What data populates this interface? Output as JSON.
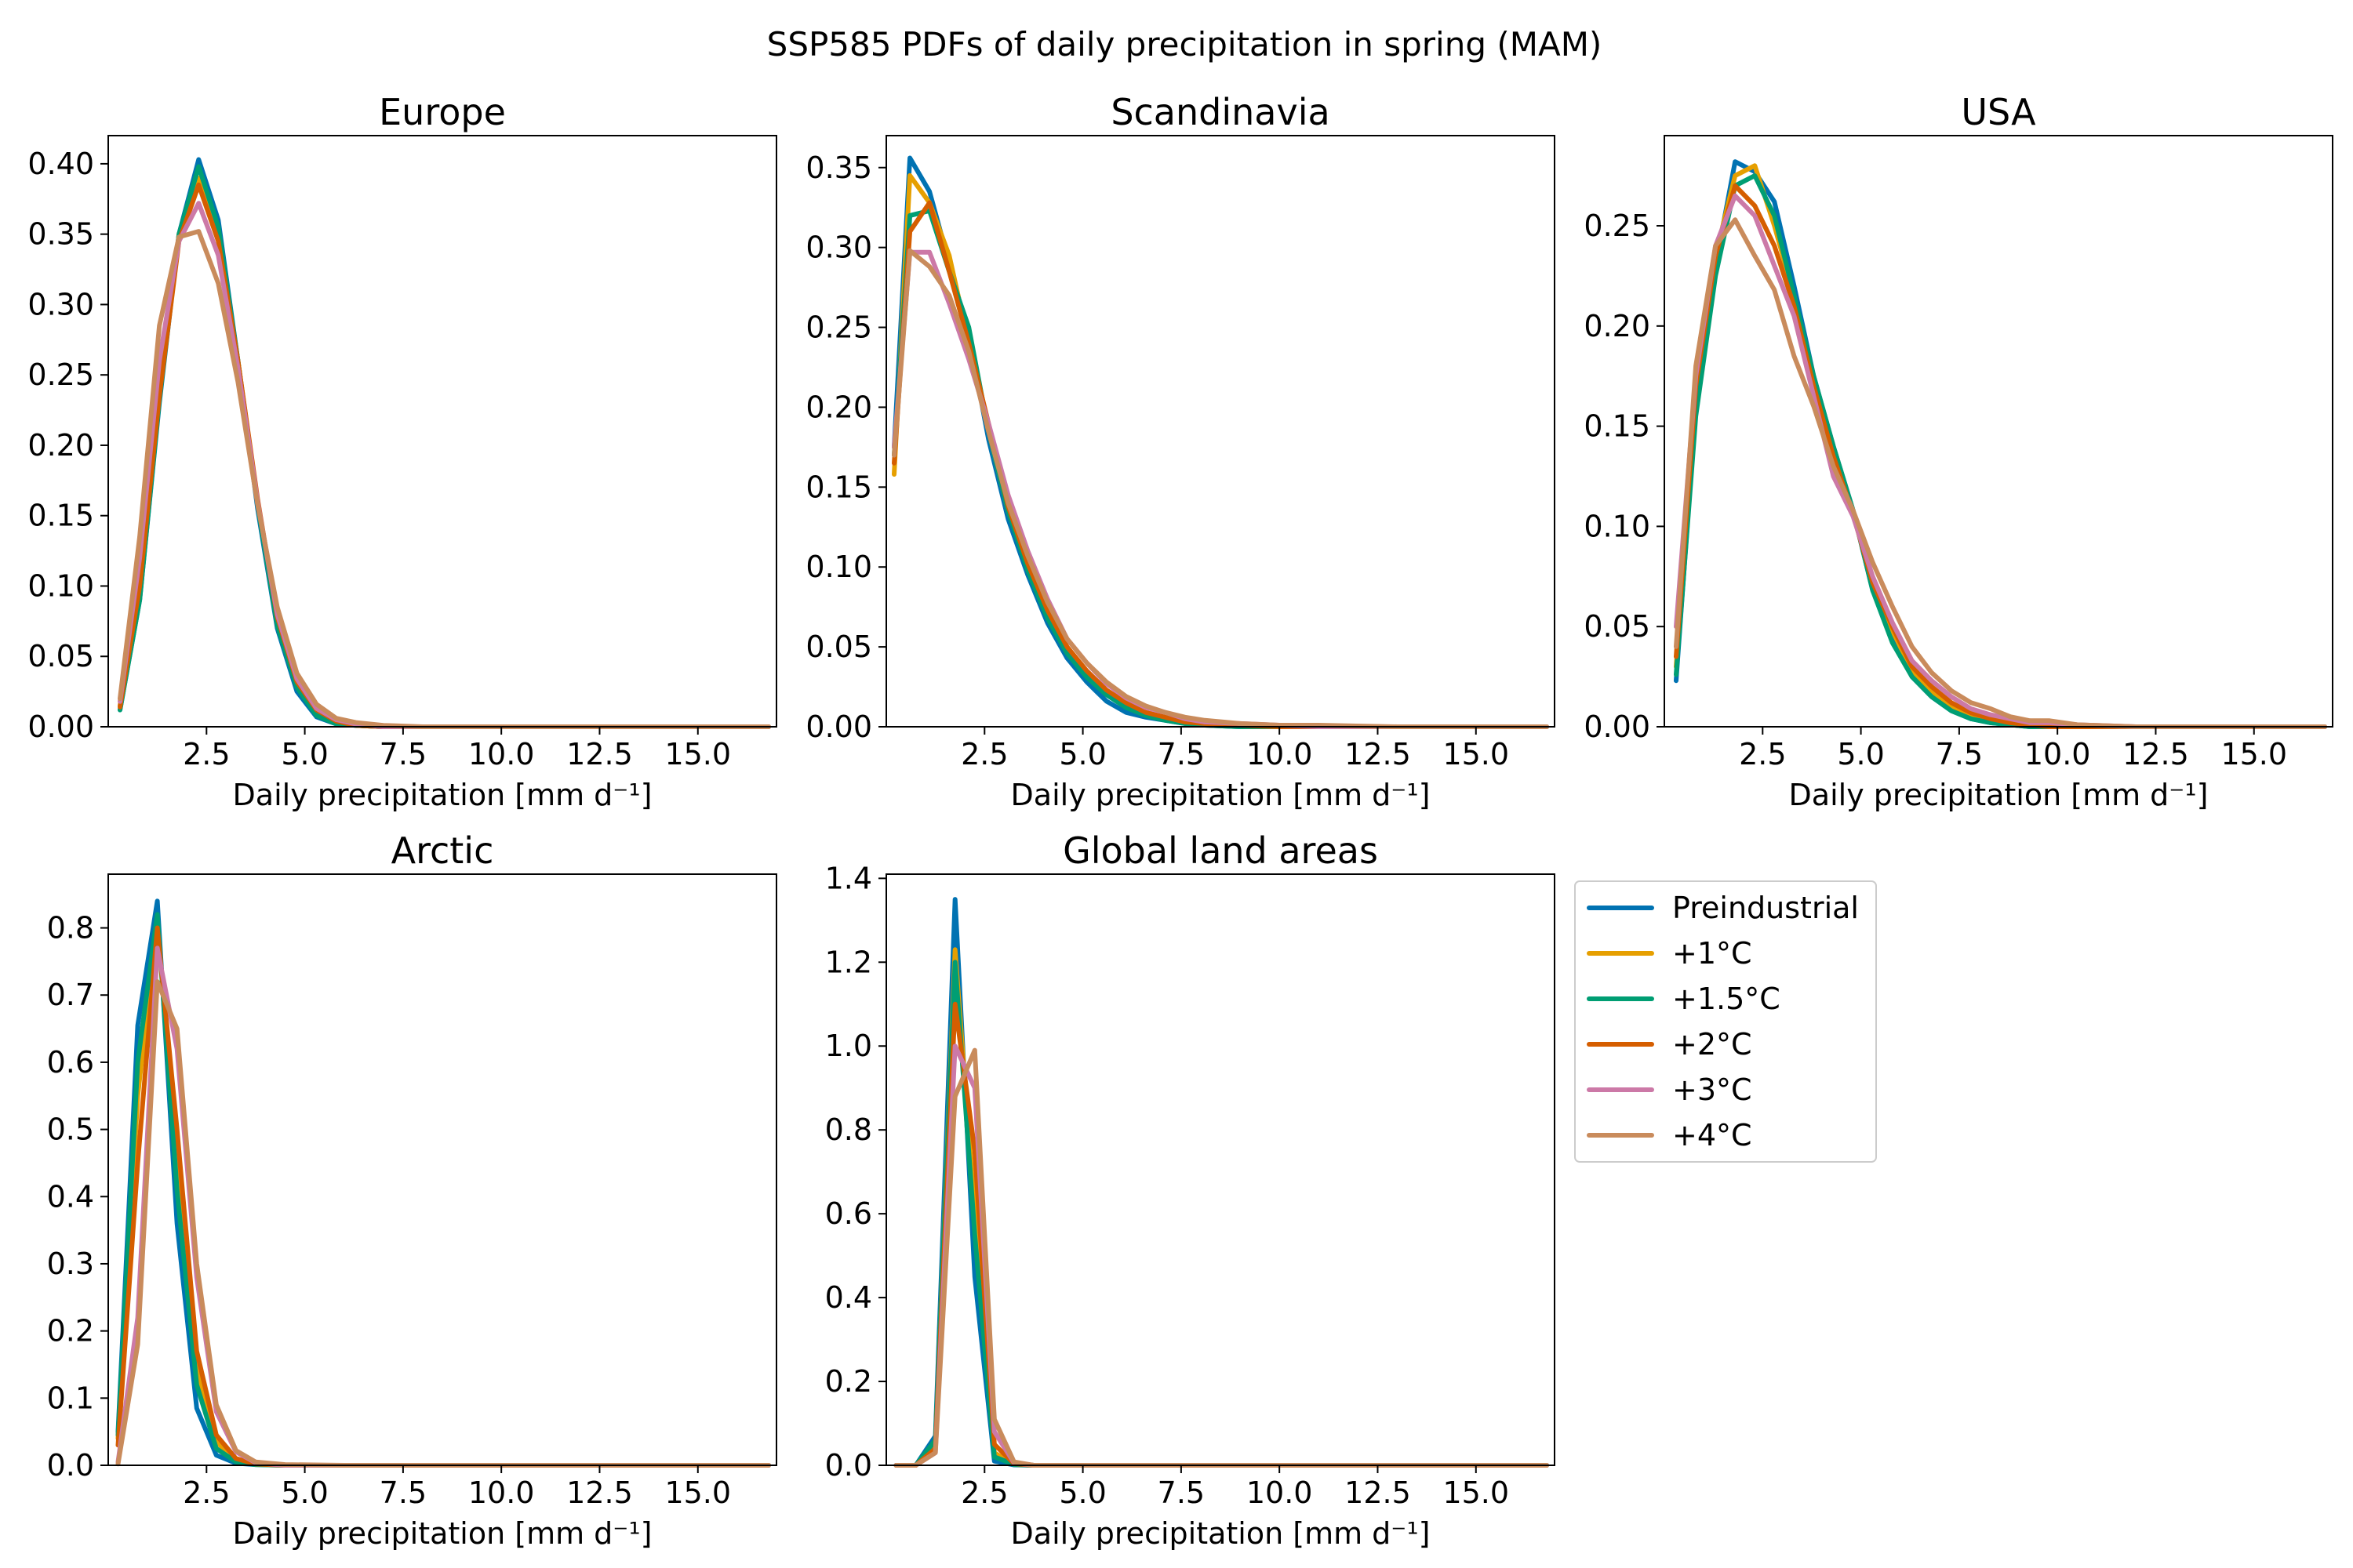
{
  "figure": {
    "title": "SSP585 PDFs of daily precipitation in spring (MAM)"
  },
  "legend": {
    "placement": "right of lower row",
    "entries": [
      {
        "label": "Preindustrial",
        "color": "#0072b2"
      },
      {
        "label": "+1°C",
        "color": "#e69f00"
      },
      {
        "label": "+1.5°C",
        "color": "#009e73"
      },
      {
        "label": "+2°C",
        "color": "#d55e00"
      },
      {
        "label": "+3°C",
        "color": "#cc79a7"
      },
      {
        "label": "+4°C",
        "color": "#c98b5c"
      }
    ]
  },
  "chart_data": [
    {
      "type": "line",
      "title": "Europe",
      "xlabel": "Daily precipitation [mm d⁻¹]",
      "ylabel": "",
      "xlim": [
        0,
        17
      ],
      "ylim": [
        0,
        0.42
      ],
      "xticks": [
        "2.5",
        "5.0",
        "7.5",
        "10.0",
        "12.5",
        "15.0"
      ],
      "yticks": [
        "0.00",
        "0.05",
        "0.10",
        "0.15",
        "0.20",
        "0.25",
        "0.30",
        "0.35",
        "0.40"
      ],
      "x": [
        0.3,
        0.8,
        1.3,
        1.8,
        2.3,
        2.8,
        3.3,
        3.8,
        4.3,
        4.8,
        5.3,
        5.8,
        6.3,
        7.0,
        8.0,
        10.0,
        13.0,
        16.8
      ],
      "series": [
        {
          "name": "Preindustrial",
          "values": [
            0.012,
            0.09,
            0.23,
            0.35,
            0.403,
            0.36,
            0.26,
            0.155,
            0.07,
            0.025,
            0.007,
            0.002,
            0.001,
            0,
            0,
            0,
            0,
            0
          ]
        },
        {
          "name": "+1°C",
          "values": [
            0.015,
            0.095,
            0.235,
            0.35,
            0.39,
            0.35,
            0.26,
            0.16,
            0.075,
            0.03,
            0.01,
            0.003,
            0.001,
            0,
            0,
            0,
            0,
            0
          ]
        },
        {
          "name": "+1.5°C",
          "values": [
            0.012,
            0.09,
            0.232,
            0.35,
            0.398,
            0.355,
            0.26,
            0.158,
            0.072,
            0.028,
            0.008,
            0.002,
            0.001,
            0,
            0,
            0,
            0,
            0
          ]
        },
        {
          "name": "+2°C",
          "values": [
            0.014,
            0.1,
            0.235,
            0.345,
            0.385,
            0.345,
            0.26,
            0.162,
            0.078,
            0.032,
            0.012,
            0.004,
            0.001,
            0,
            0,
            0,
            0,
            0
          ]
        },
        {
          "name": "+3°C",
          "values": [
            0.018,
            0.12,
            0.26,
            0.345,
            0.372,
            0.335,
            0.255,
            0.16,
            0.08,
            0.034,
            0.013,
            0.005,
            0.002,
            0,
            0,
            0,
            0,
            0
          ]
        },
        {
          "name": "+4°C",
          "values": [
            0.02,
            0.135,
            0.285,
            0.348,
            0.352,
            0.315,
            0.245,
            0.158,
            0.085,
            0.038,
            0.016,
            0.006,
            0.003,
            0.001,
            0,
            0,
            0,
            0
          ]
        }
      ]
    },
    {
      "type": "line",
      "title": "Scandinavia",
      "xlabel": "Daily precipitation [mm d⁻¹]",
      "ylabel": "",
      "xlim": [
        0,
        17
      ],
      "ylim": [
        0,
        0.37
      ],
      "xticks": [
        "2.5",
        "5.0",
        "7.5",
        "10.0",
        "12.5",
        "15.0"
      ],
      "yticks": [
        "0.00",
        "0.05",
        "0.10",
        "0.15",
        "0.20",
        "0.25",
        "0.30",
        "0.35"
      ],
      "x": [
        0.2,
        0.6,
        1.1,
        1.6,
        2.1,
        2.6,
        3.1,
        3.6,
        4.1,
        4.6,
        5.1,
        5.6,
        6.1,
        6.6,
        7.1,
        7.6,
        8.1,
        9.0,
        10.0,
        11.0,
        13.0,
        16.8
      ],
      "series": [
        {
          "name": "Preindustrial",
          "values": [
            0.175,
            0.356,
            0.335,
            0.29,
            0.245,
            0.18,
            0.13,
            0.095,
            0.065,
            0.043,
            0.028,
            0.016,
            0.009,
            0.006,
            0.004,
            0.002,
            0.001,
            0,
            0,
            0,
            0,
            0
          ]
        },
        {
          "name": "+1°C",
          "values": [
            0.158,
            0.345,
            0.328,
            0.295,
            0.24,
            0.185,
            0.135,
            0.1,
            0.072,
            0.05,
            0.034,
            0.022,
            0.014,
            0.008,
            0.005,
            0.003,
            0.002,
            0.001,
            0,
            0,
            0,
            0
          ]
        },
        {
          "name": "+1.5°C",
          "values": [
            0.17,
            0.32,
            0.323,
            0.285,
            0.25,
            0.185,
            0.135,
            0.098,
            0.068,
            0.046,
            0.031,
            0.02,
            0.012,
            0.007,
            0.004,
            0.002,
            0.001,
            0,
            0,
            0,
            0,
            0
          ]
        },
        {
          "name": "+2°C",
          "values": [
            0.165,
            0.31,
            0.328,
            0.285,
            0.24,
            0.19,
            0.138,
            0.102,
            0.073,
            0.05,
            0.035,
            0.023,
            0.015,
            0.009,
            0.006,
            0.003,
            0.002,
            0.001,
            0,
            0,
            0,
            0
          ]
        },
        {
          "name": "+3°C",
          "values": [
            0.175,
            0.297,
            0.297,
            0.265,
            0.23,
            0.19,
            0.145,
            0.11,
            0.08,
            0.055,
            0.04,
            0.027,
            0.018,
            0.012,
            0.009,
            0.005,
            0.003,
            0.002,
            0.001,
            0,
            0,
            0
          ]
        },
        {
          "name": "+4°C",
          "values": [
            0.17,
            0.298,
            0.288,
            0.27,
            0.235,
            0.185,
            0.14,
            0.107,
            0.078,
            0.055,
            0.04,
            0.028,
            0.019,
            0.013,
            0.009,
            0.006,
            0.004,
            0.002,
            0.001,
            0.001,
            0,
            0
          ]
        }
      ]
    },
    {
      "type": "line",
      "title": "USA",
      "xlabel": "Daily precipitation [mm d⁻¹]",
      "ylabel": "",
      "xlim": [
        0,
        17
      ],
      "ylim": [
        0,
        0.295
      ],
      "xticks": [
        "2.5",
        "5.0",
        "7.5",
        "10.0",
        "12.5",
        "15.0"
      ],
      "yticks": [
        "0.00",
        "0.05",
        "0.10",
        "0.15",
        "0.20",
        "0.25"
      ],
      "x": [
        0.3,
        0.8,
        1.3,
        1.8,
        2.3,
        2.8,
        3.3,
        3.8,
        4.3,
        4.8,
        5.3,
        5.8,
        6.3,
        6.8,
        7.3,
        7.8,
        8.3,
        8.8,
        9.3,
        9.8,
        10.5,
        12.0,
        16.8
      ],
      "series": [
        {
          "name": "Preindustrial",
          "values": [
            0.023,
            0.16,
            0.23,
            0.282,
            0.277,
            0.262,
            0.22,
            0.175,
            0.14,
            0.108,
            0.068,
            0.045,
            0.025,
            0.015,
            0.008,
            0.004,
            0.002,
            0.001,
            0,
            0,
            0,
            0,
            0
          ]
        },
        {
          "name": "+1°C",
          "values": [
            0.03,
            0.165,
            0.235,
            0.275,
            0.28,
            0.25,
            0.215,
            0.172,
            0.138,
            0.108,
            0.07,
            0.048,
            0.028,
            0.018,
            0.01,
            0.006,
            0.003,
            0.002,
            0.001,
            0,
            0,
            0,
            0
          ]
        },
        {
          "name": "+1.5°C",
          "values": [
            0.026,
            0.155,
            0.225,
            0.27,
            0.275,
            0.255,
            0.215,
            0.175,
            0.14,
            0.108,
            0.068,
            0.042,
            0.025,
            0.015,
            0.008,
            0.004,
            0.002,
            0.001,
            0,
            0,
            0,
            0,
            0
          ]
        },
        {
          "name": "+2°C",
          "values": [
            0.035,
            0.17,
            0.235,
            0.27,
            0.26,
            0.24,
            0.21,
            0.17,
            0.135,
            0.106,
            0.072,
            0.05,
            0.03,
            0.02,
            0.012,
            0.007,
            0.004,
            0.002,
            0.001,
            0,
            0,
            0,
            0
          ]
        },
        {
          "name": "+3°C",
          "values": [
            0.05,
            0.175,
            0.24,
            0.265,
            0.255,
            0.23,
            0.205,
            0.165,
            0.125,
            0.105,
            0.075,
            0.052,
            0.033,
            0.023,
            0.015,
            0.009,
            0.006,
            0.004,
            0.002,
            0.002,
            0.001,
            0,
            0
          ]
        },
        {
          "name": "+4°C",
          "values": [
            0.04,
            0.18,
            0.24,
            0.253,
            0.235,
            0.218,
            0.185,
            0.16,
            0.13,
            0.108,
            0.082,
            0.06,
            0.04,
            0.027,
            0.018,
            0.012,
            0.009,
            0.005,
            0.003,
            0.003,
            0.001,
            0,
            0
          ]
        }
      ]
    },
    {
      "type": "line",
      "title": "Arctic",
      "xlabel": "Daily precipitation [mm d⁻¹]",
      "ylabel": "",
      "xlim": [
        0,
        17
      ],
      "ylim": [
        0,
        0.88
      ],
      "xticks": [
        "2.5",
        "5.0",
        "7.5",
        "10.0",
        "12.5",
        "15.0"
      ],
      "yticks": [
        "0.0",
        "0.1",
        "0.2",
        "0.3",
        "0.4",
        "0.5",
        "0.6",
        "0.7",
        "0.8"
      ],
      "x": [
        0.25,
        0.75,
        1.25,
        1.75,
        2.25,
        2.75,
        3.25,
        3.75,
        4.5,
        6.0,
        10.0,
        16.8
      ],
      "series": [
        {
          "name": "Preindustrial",
          "values": [
            0.05,
            0.655,
            0.84,
            0.36,
            0.085,
            0.015,
            0.003,
            0.001,
            0,
            0,
            0,
            0
          ]
        },
        {
          "name": "+1°C",
          "values": [
            0.04,
            0.55,
            0.81,
            0.44,
            0.14,
            0.035,
            0.008,
            0.002,
            0,
            0,
            0,
            0
          ]
        },
        {
          "name": "+1.5°C",
          "values": [
            0.045,
            0.6,
            0.82,
            0.41,
            0.12,
            0.025,
            0.005,
            0.001,
            0,
            0,
            0,
            0
          ]
        },
        {
          "name": "+2°C",
          "values": [
            0.03,
            0.45,
            0.8,
            0.5,
            0.17,
            0.045,
            0.01,
            0.002,
            0,
            0,
            0,
            0
          ]
        },
        {
          "name": "+3°C",
          "values": [
            0.005,
            0.22,
            0.77,
            0.62,
            0.28,
            0.08,
            0.02,
            0.004,
            0,
            0,
            0,
            0
          ]
        },
        {
          "name": "+4°C",
          "values": [
            0.002,
            0.18,
            0.72,
            0.65,
            0.3,
            0.09,
            0.022,
            0.005,
            0.001,
            0,
            0,
            0
          ]
        }
      ]
    },
    {
      "type": "line",
      "title": "Global land areas",
      "xlabel": "Daily precipitation [mm d⁻¹]",
      "ylabel": "",
      "xlim": [
        0,
        17
      ],
      "ylim": [
        0,
        1.41
      ],
      "xticks": [
        "2.5",
        "5.0",
        "7.5",
        "10.0",
        "12.5",
        "15.0"
      ],
      "yticks": [
        "0.0",
        "0.2",
        "0.4",
        "0.6",
        "0.8",
        "1.0",
        "1.2",
        "1.4"
      ],
      "x": [
        0.25,
        0.75,
        1.25,
        1.75,
        2.25,
        2.75,
        3.25,
        3.75,
        5.0,
        10.0,
        16.8
      ],
      "series": [
        {
          "name": "Preindustrial",
          "values": [
            0,
            0,
            0.07,
            1.35,
            0.45,
            0.01,
            0.001,
            0,
            0,
            0,
            0
          ]
        },
        {
          "name": "+1°C",
          "values": [
            0,
            0,
            0.05,
            1.23,
            0.6,
            0.03,
            0.002,
            0,
            0,
            0,
            0
          ]
        },
        {
          "name": "+1.5°C",
          "values": [
            0,
            0,
            0.06,
            1.2,
            0.55,
            0.02,
            0.002,
            0,
            0,
            0,
            0
          ]
        },
        {
          "name": "+2°C",
          "values": [
            0,
            0,
            0.04,
            1.1,
            0.75,
            0.05,
            0.004,
            0,
            0,
            0,
            0
          ]
        },
        {
          "name": "+3°C",
          "values": [
            0,
            0,
            0.03,
            1.0,
            0.9,
            0.08,
            0.006,
            0,
            0,
            0,
            0
          ]
        },
        {
          "name": "+4°C",
          "values": [
            0,
            0,
            0.03,
            0.88,
            0.99,
            0.11,
            0.008,
            0,
            0,
            0,
            0
          ]
        }
      ]
    }
  ]
}
